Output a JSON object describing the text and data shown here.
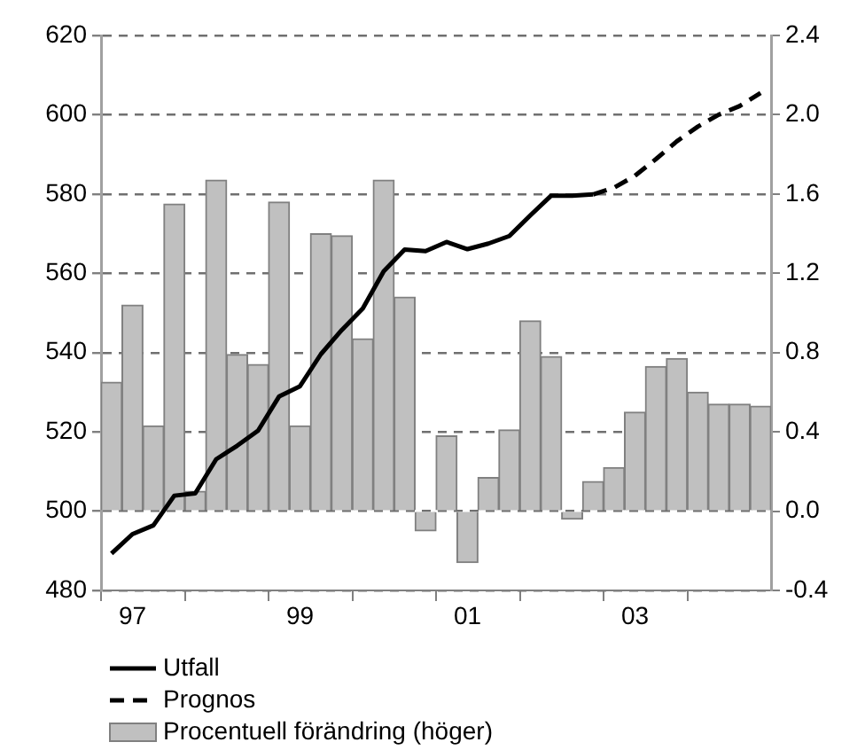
{
  "chart_data": {
    "type": "bar",
    "categories": [
      null,
      "97",
      null,
      null,
      null,
      null,
      null,
      null,
      null,
      "99",
      null,
      null,
      null,
      null,
      null,
      null,
      null,
      "01",
      null,
      null,
      null,
      null,
      null,
      null,
      null,
      "03",
      null,
      null,
      null,
      null,
      null,
      null
    ],
    "series": [
      {
        "name": "Utfall",
        "type": "line",
        "axis": "y",
        "color": "#000000",
        "line_style": "solid",
        "values": [
          489.3,
          494.2,
          496.4,
          503.9,
          504.5,
          513.1,
          516.5,
          520.3,
          528.9,
          531.5,
          539.6,
          545.7,
          551.1,
          560.5,
          566.0,
          565.6,
          567.9,
          566.1,
          567.5,
          569.4,
          574.6,
          579.6,
          579.6,
          579.9,
          null,
          null,
          null,
          null,
          null,
          null,
          null,
          null
        ]
      },
      {
        "name": "Prognos",
        "type": "line",
        "axis": "y",
        "color": "#000000",
        "line_style": "dashed",
        "values": [
          null,
          null,
          null,
          null,
          null,
          null,
          null,
          null,
          null,
          null,
          null,
          null,
          null,
          null,
          null,
          null,
          null,
          null,
          null,
          null,
          null,
          null,
          null,
          579.9,
          581.6,
          584.6,
          588.8,
          593.3,
          597.0,
          600.0,
          602.2,
          605.5
        ]
      },
      {
        "name": "Procentuell förändring (höger)",
        "axis": "y2",
        "color": "#c0c0c0",
        "values": [
          0.65,
          1.04,
          0.43,
          1.55,
          0.1,
          1.67,
          0.79,
          0.74,
          1.56,
          0.43,
          1.4,
          1.39,
          0.87,
          1.67,
          1.08,
          -0.1,
          0.38,
          -0.26,
          0.17,
          0.41,
          0.96,
          0.78,
          -0.04,
          0.15,
          0.22,
          0.5,
          0.73,
          0.77,
          0.6,
          0.54,
          0.54,
          0.53
        ]
      }
    ],
    "ylim": [
      480,
      620
    ],
    "yticks": [
      480,
      500,
      520,
      540,
      560,
      580,
      600,
      620
    ],
    "y2lim": [
      -0.4,
      2.4
    ],
    "y2ticks": [
      {
        "value": -0.4,
        "label": "-0.4"
      },
      {
        "value": 0,
        "label": "0.0"
      },
      {
        "value": 0.4,
        "label": "0.4"
      },
      {
        "value": 0.8,
        "label": "0.8"
      },
      {
        "value": 1.2,
        "label": "1.2"
      },
      {
        "value": 1.6,
        "label": "1.6"
      },
      {
        "value": 2,
        "label": "2.0"
      },
      {
        "value": 2.4,
        "label": "2.4"
      }
    ],
    "grid": "y",
    "legend": "bottom left",
    "marker": "none"
  }
}
